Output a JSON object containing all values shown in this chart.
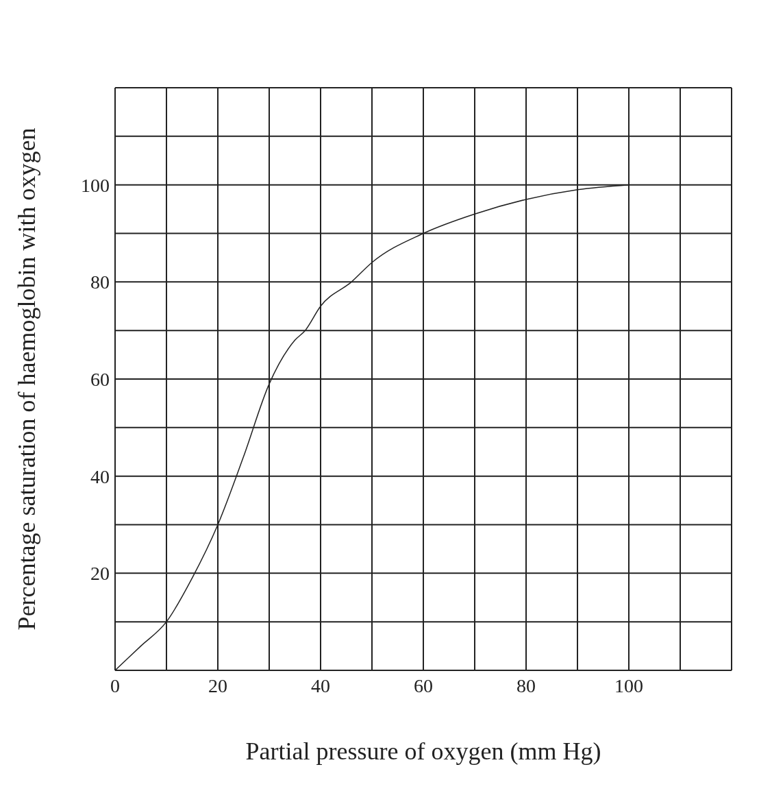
{
  "chart_data": {
    "type": "line",
    "xlabel": "Partial pressure of oxygen (mm Hg)",
    "ylabel": "Percentage saturation of haemoglobin with oxygen",
    "x": [
      0,
      5,
      10,
      15,
      20,
      25,
      30,
      35,
      37,
      40,
      46,
      50,
      60,
      70,
      80,
      90,
      100
    ],
    "series": [
      {
        "color": "#222222",
        "values": [
          0,
          5,
          10,
          19,
          30,
          44,
          59,
          68,
          70,
          75,
          80,
          84,
          90,
          94,
          97,
          99,
          100
        ]
      }
    ],
    "xlim": [
      0,
      120
    ],
    "ylim": [
      0,
      120
    ],
    "xticks": [
      0,
      {
        "value": 10,
        "label": null
      },
      20,
      {
        "value": 30,
        "label": null
      },
      40,
      {
        "value": 50,
        "label": null
      },
      60,
      {
        "value": 70,
        "label": null
      },
      80,
      {
        "value": 90,
        "label": null
      },
      100,
      {
        "value": 110,
        "label": null
      },
      {
        "value": 120,
        "label": null
      }
    ],
    "yticks": [
      {
        "value": 0,
        "label": null
      },
      {
        "value": 10,
        "label": null
      },
      20,
      {
        "value": 30,
        "label": null
      },
      40,
      {
        "value": 50,
        "label": null
      },
      60,
      {
        "value": 70,
        "label": null
      },
      80,
      {
        "value": 90,
        "label": null
      },
      100,
      {
        "value": 110,
        "label": null
      },
      {
        "value": 120,
        "label": null
      }
    ],
    "grid": true,
    "marker": "none",
    "line_style": "solid",
    "legend": false
  }
}
